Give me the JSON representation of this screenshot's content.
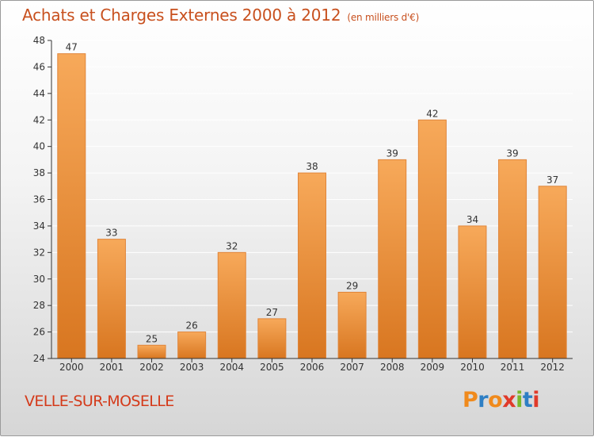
{
  "title": "Achats et Charges Externes 2000 à 2012",
  "subtitle": "(en milliers d'€)",
  "commune": "VELLE-SUR-MOSELLE",
  "logo_text": "Proxiti",
  "colors": {
    "bar_top": "#f7a95a",
    "bar_bottom": "#d87620",
    "bar_edge": "#e0853a",
    "title": "#c8501e",
    "commune": "#d43a1a",
    "axis": "#333333",
    "grid": "#ffffff",
    "logo": [
      "#f08a1c",
      "#2e7fc4",
      "#f08a1c",
      "#e03a2a",
      "#7ab82a",
      "#2e7fc4",
      "#e03a2a"
    ]
  },
  "chart_data": {
    "type": "bar",
    "categories": [
      "2000",
      "2001",
      "2002",
      "2003",
      "2004",
      "2005",
      "2006",
      "2007",
      "2008",
      "2009",
      "2010",
      "2011",
      "2012"
    ],
    "values": [
      47,
      33,
      25,
      26,
      32,
      27,
      38,
      29,
      39,
      42,
      34,
      39,
      37
    ],
    "title": "Achats et Charges Externes 2000 à 2012",
    "subtitle": "(en milliers d'€)",
    "xlabel": "",
    "ylabel": "",
    "ylim": [
      24,
      48
    ],
    "yticks": [
      24,
      26,
      28,
      30,
      32,
      34,
      36,
      38,
      40,
      42,
      44,
      46,
      48
    ],
    "grid": true,
    "data_labels": true
  }
}
